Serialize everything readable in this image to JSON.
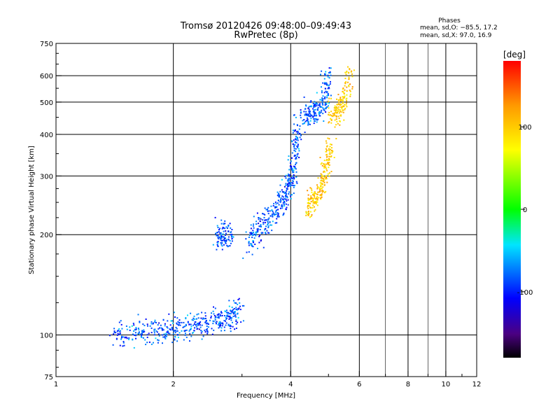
{
  "chart_data": {
    "type": "scatter",
    "title": "Tromsø 20120426 09:48:00–09:49:43",
    "subtitle": "RwPretec (8p)",
    "xlabel": "Frequency [MHz]",
    "ylabel": "Stationary phase Virtual Height [km]",
    "x_scale": "log",
    "y_scale": "log",
    "xlim": [
      1,
      12
    ],
    "ylim": [
      75,
      750
    ],
    "x_ticks": [
      1,
      2,
      4,
      6,
      8,
      10,
      12
    ],
    "y_ticks": [
      75,
      100,
      200,
      300,
      400,
      500,
      600,
      750
    ],
    "grid": true,
    "phases_box": {
      "title": "Phases",
      "line_o": "mean, sd,O: −85.5, 17.2",
      "line_x": "mean, sd,X:  97.0, 16.9"
    },
    "colorbar": {
      "label": "[deg]",
      "ticks": [
        100,
        0,
        -100
      ],
      "range": [
        -180,
        180
      ]
    },
    "series": [
      {
        "mode": "O",
        "phase_mean": -85.5,
        "phase_sd": 17.2,
        "segments": [
          {
            "f": [
              1.4,
              1.6,
              1.8,
              2.0,
              2.2,
              2.4,
              2.6,
              2.8,
              3.0
            ],
            "h": [
              100,
              101,
              103,
              104,
              106,
              108,
              111,
              114,
              118
            ]
          },
          {
            "f": [
              2.6,
              2.7,
              2.8
            ],
            "h": [
              195,
              200,
              198
            ]
          },
          {
            "f": [
              3.1,
              3.3,
              3.5,
              3.7,
              3.9,
              4.0,
              4.1,
              4.15
            ],
            "h": [
              190,
              205,
              220,
              240,
              260,
              290,
              340,
              420
            ]
          },
          {
            "f": [
              4.3,
              4.5,
              4.7,
              4.9,
              5.0
            ],
            "h": [
              450,
              460,
              470,
              500,
              640
            ]
          }
        ]
      },
      {
        "mode": "X",
        "phase_mean": 97.0,
        "phase_sd": 16.9,
        "segments": [
          {
            "f": [
              4.4,
              4.6,
              4.8,
              4.95,
              5.05
            ],
            "h": [
              240,
              255,
              280,
              320,
              380
            ]
          },
          {
            "f": [
              5.1,
              5.3,
              5.5,
              5.7
            ],
            "h": [
              460,
              470,
              500,
              640
            ]
          }
        ]
      }
    ]
  }
}
